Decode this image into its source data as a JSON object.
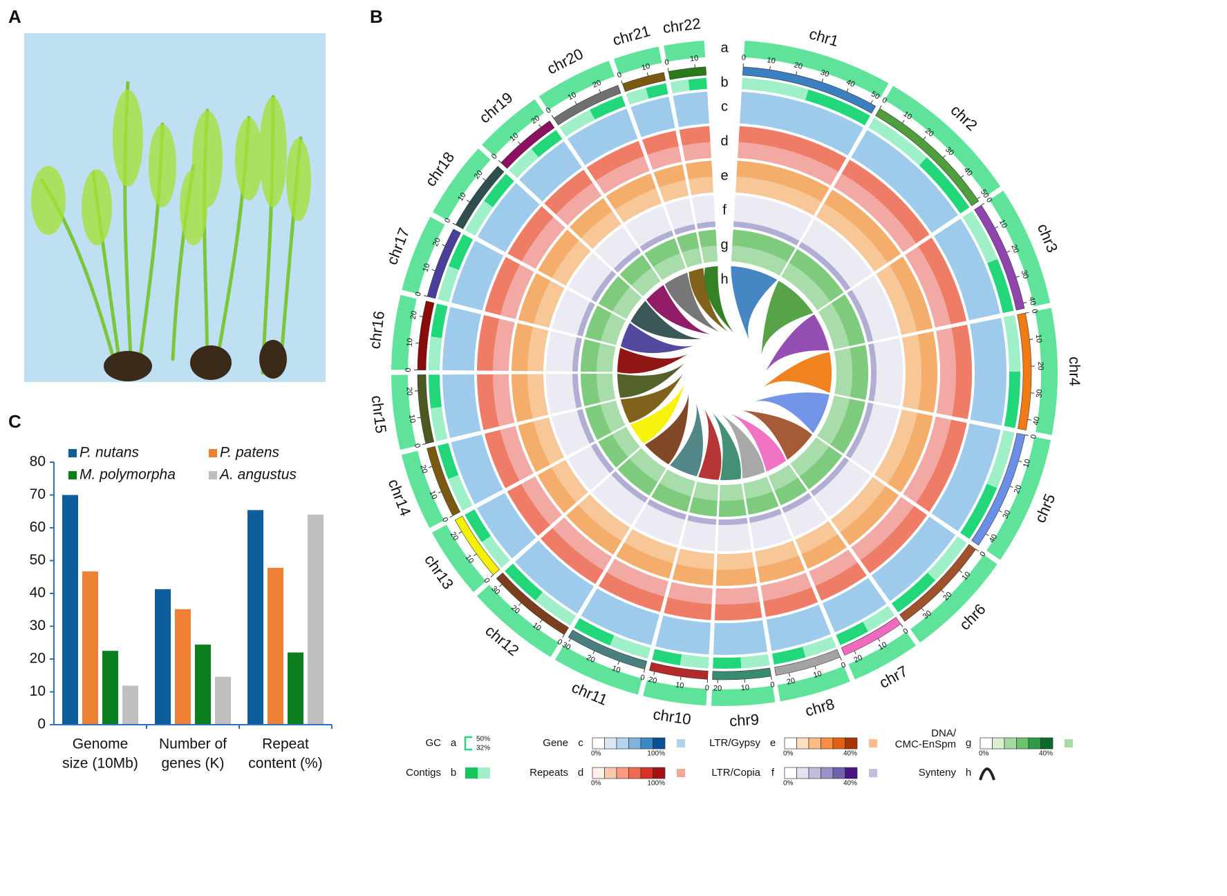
{
  "panels": {
    "a": "A",
    "b": "B",
    "c": "C"
  },
  "circos": {
    "track_letters": [
      "a",
      "b",
      "c",
      "d",
      "e",
      "f",
      "g",
      "h"
    ],
    "chromosomes": [
      {
        "name": "chr1",
        "length": 52,
        "color": "#3b7fc0",
        "ticks": [
          0,
          10,
          20,
          30,
          40,
          50
        ]
      },
      {
        "name": "chr2",
        "length": 51,
        "color": "#4f9e3e",
        "ticks": [
          0,
          10,
          20,
          30,
          40,
          50
        ]
      },
      {
        "name": "chr3",
        "length": 42,
        "color": "#8f45ad",
        "ticks": [
          0,
          10,
          20,
          30,
          40
        ]
      },
      {
        "name": "chr4",
        "length": 44,
        "color": "#f07b14",
        "ticks": [
          0,
          10,
          20,
          30,
          40
        ]
      },
      {
        "name": "chr5",
        "length": 45,
        "color": "#6b8fe6",
        "ticks": [
          0,
          10,
          20,
          30,
          40
        ]
      },
      {
        "name": "chr6",
        "length": 38,
        "color": "#a0522d",
        "ticks": [
          0,
          10,
          20,
          30
        ]
      },
      {
        "name": "chr7",
        "length": 24,
        "color": "#f06bc0",
        "ticks": [
          0,
          10,
          20
        ]
      },
      {
        "name": "chr8",
        "length": 25,
        "color": "#a3a3a3",
        "ticks": [
          0,
          10,
          20
        ]
      },
      {
        "name": "chr9",
        "length": 22,
        "color": "#3a8a6e",
        "ticks": [
          0,
          10,
          20
        ]
      },
      {
        "name": "chr10",
        "length": 22,
        "color": "#b22a2a",
        "ticks": [
          0,
          10,
          20
        ]
      },
      {
        "name": "chr11",
        "length": 31,
        "color": "#4a7f7f",
        "ticks": [
          0,
          10,
          20,
          30
        ]
      },
      {
        "name": "chr12",
        "length": 33,
        "color": "#7b3f1e",
        "ticks": [
          0,
          10,
          20,
          30
        ]
      },
      {
        "name": "chr13",
        "length": 25,
        "color": "#f5f000",
        "ticks": [
          0,
          10,
          20
        ]
      },
      {
        "name": "chr14",
        "length": 27,
        "color": "#7a5a10",
        "ticks": [
          0,
          10,
          20
        ]
      },
      {
        "name": "chr15",
        "length": 26,
        "color": "#4a5a20",
        "ticks": [
          0,
          10,
          20
        ]
      },
      {
        "name": "chr16",
        "length": 26,
        "color": "#8b0a0a",
        "ticks": [
          0,
          10,
          20
        ]
      },
      {
        "name": "chr17",
        "length": 27,
        "color": "#4a3f9a",
        "ticks": [
          0,
          10,
          20
        ]
      },
      {
        "name": "chr18",
        "length": 27,
        "color": "#2f4f4f",
        "ticks": [
          0,
          10,
          20
        ]
      },
      {
        "name": "chr19",
        "length": 24,
        "color": "#8b1060",
        "ticks": [
          0,
          10,
          20
        ]
      },
      {
        "name": "chr20",
        "length": 27,
        "color": "#707070",
        "ticks": [
          0,
          10,
          20
        ]
      },
      {
        "name": "chr21",
        "length": 16,
        "color": "#7a5a10",
        "ticks": [
          0,
          10
        ]
      },
      {
        "name": "chr22",
        "length": 14,
        "color": "#2a7a1a",
        "ticks": [
          0,
          10
        ]
      }
    ]
  },
  "legend": [
    {
      "name": [
        "GC"
      ],
      "letter": "a",
      "max": "50%",
      "min": "32%"
    },
    {
      "name": [
        "Contigs"
      ],
      "letter": "b"
    },
    {
      "name": [
        "Gene"
      ],
      "letter": "c",
      "min": "0%",
      "max": "100%",
      "colors": [
        "#ffffff",
        "#dbe9f6",
        "#b5d3ec",
        "#7fb2dc",
        "#3f86c4",
        "#0b4f96"
      ]
    },
    {
      "name": [
        "Repeats"
      ],
      "letter": "d",
      "min": "0%",
      "max": "100%",
      "colors": [
        "#fff0ea",
        "#fcc7b1",
        "#f99b80",
        "#f06a4e",
        "#d9302a",
        "#a50f15"
      ]
    },
    {
      "name": [
        "LTR/Gypsy"
      ],
      "letter": "e",
      "min": "0%",
      "max": "40%",
      "colors": [
        "#ffffff",
        "#fde0c2",
        "#fdbb84",
        "#f98e44",
        "#e45f12",
        "#a63603"
      ]
    },
    {
      "name": [
        "LTR/Copia"
      ],
      "letter": "f",
      "min": "0%",
      "max": "40%",
      "colors": [
        "#ffffff",
        "#e3e2f0",
        "#bfbddb",
        "#9894c6",
        "#7062ad",
        "#4a1486"
      ]
    },
    {
      "name": [
        "DNA/",
        "CMC-EnSpm"
      ],
      "letter": "g",
      "min": "0%",
      "max": "40%",
      "colors": [
        "#ffffff",
        "#d9f0d3",
        "#a6dba0",
        "#6cc36b",
        "#2e9a48",
        "#0b6a2a"
      ]
    },
    {
      "name": [
        "Synteny"
      ],
      "letter": "h"
    }
  ],
  "chart_data": {
    "type": "bar",
    "categories": [
      [
        "Genome",
        "size (10Mb)"
      ],
      [
        "Number of",
        "genes (K)"
      ],
      [
        "Repeat",
        "content (%)"
      ]
    ],
    "series": [
      {
        "name": "P. nutans",
        "color": "#0d5e9b",
        "values": [
          70,
          41.3,
          65.4
        ]
      },
      {
        "name": "P. patens",
        "color": "#ee8034",
        "values": [
          46.7,
          35.2,
          47.8
        ]
      },
      {
        "name": "M. polymorpha",
        "color": "#0b7e1e",
        "values": [
          22.5,
          24.4,
          22
        ]
      },
      {
        "name": "A. angustus",
        "color": "#bfbfbf",
        "values": [
          11.9,
          14.6,
          64
        ]
      }
    ],
    "ylim": [
      0,
      80
    ],
    "yticks": [
      0,
      10,
      20,
      30,
      40,
      50,
      60,
      70,
      80
    ]
  }
}
